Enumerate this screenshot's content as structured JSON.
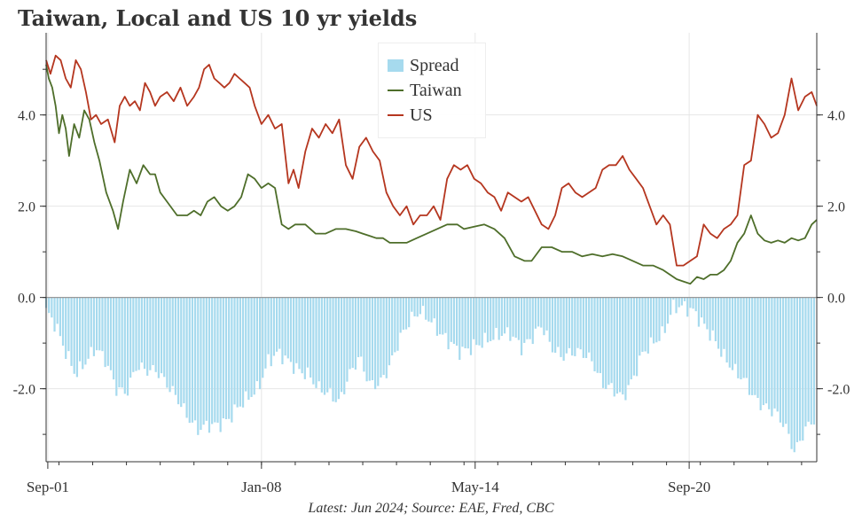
{
  "chart_data": {
    "type": "bar+line",
    "title": "Taiwan, Local and US 10 yr yields",
    "footer": "Latest: Jun 2024; Source: EAE, Fred, CBC",
    "x_tick_labels": [
      "Sep-01",
      "Jan-08",
      "May-14",
      "Sep-20"
    ],
    "x_tick_dates": [
      2001.67,
      2008.0,
      2014.33,
      2020.67
    ],
    "xlim": [
      2001.62,
      2024.45
    ],
    "ylim": [
      -3.6,
      5.8
    ],
    "y_ticks": [
      -2.0,
      0.0,
      2.0,
      4.0
    ],
    "y_tick_labels": [
      "-2.0",
      "0.0",
      "2.0",
      "4.0"
    ],
    "grid": true,
    "legend_position": "top-center",
    "legend": [
      "Spread",
      "Taiwan",
      "US"
    ],
    "colors": {
      "spread": "#a6daee",
      "taiwan": "#4e6e2a",
      "us": "#b5361f",
      "zero_line": "#999999"
    },
    "series": [
      {
        "name": "Taiwan",
        "kind": "line",
        "x": [
          2001.62,
          2001.7,
          2001.8,
          2001.9,
          2002.0,
          2002.1,
          2002.2,
          2002.3,
          2002.45,
          2002.6,
          2002.75,
          2002.9,
          2003.05,
          2003.2,
          2003.4,
          2003.6,
          2003.75,
          2003.9,
          2004.1,
          2004.3,
          2004.5,
          2004.7,
          2004.85,
          2005.0,
          2005.2,
          2005.5,
          2005.8,
          2006.0,
          2006.2,
          2006.4,
          2006.6,
          2006.8,
          2007.0,
          2007.2,
          2007.4,
          2007.6,
          2007.8,
          2008.0,
          2008.2,
          2008.4,
          2008.6,
          2008.8,
          2009.0,
          2009.3,
          2009.6,
          2009.9,
          2010.2,
          2010.5,
          2010.8,
          2011.0,
          2011.2,
          2011.4,
          2011.6,
          2011.8,
          2012.0,
          2012.3,
          2012.6,
          2012.9,
          2013.2,
          2013.5,
          2013.8,
          2014.0,
          2014.3,
          2014.6,
          2014.9,
          2015.2,
          2015.5,
          2015.8,
          2016.0,
          2016.3,
          2016.6,
          2016.9,
          2017.2,
          2017.5,
          2017.8,
          2018.1,
          2018.4,
          2018.7,
          2019.0,
          2019.3,
          2019.6,
          2019.9,
          2020.1,
          2020.3,
          2020.5,
          2020.7,
          2020.9,
          2021.1,
          2021.3,
          2021.5,
          2021.7,
          2021.9,
          2022.1,
          2022.3,
          2022.5,
          2022.7,
          2022.9,
          2023.1,
          2023.3,
          2023.5,
          2023.7,
          2023.9,
          2024.1,
          2024.3,
          2024.45
        ],
        "y": [
          5.1,
          4.8,
          4.6,
          4.2,
          3.6,
          4.0,
          3.7,
          3.1,
          3.8,
          3.5,
          4.1,
          3.9,
          3.4,
          3.0,
          2.3,
          1.9,
          1.5,
          2.1,
          2.8,
          2.5,
          2.9,
          2.7,
          2.7,
          2.3,
          2.1,
          1.8,
          1.8,
          1.9,
          1.8,
          2.1,
          2.2,
          2.0,
          1.9,
          2.0,
          2.2,
          2.7,
          2.6,
          2.4,
          2.5,
          2.4,
          1.6,
          1.5,
          1.6,
          1.6,
          1.4,
          1.4,
          1.5,
          1.5,
          1.45,
          1.4,
          1.35,
          1.3,
          1.3,
          1.2,
          1.2,
          1.2,
          1.3,
          1.4,
          1.5,
          1.6,
          1.6,
          1.5,
          1.55,
          1.6,
          1.5,
          1.3,
          0.9,
          0.8,
          0.8,
          1.1,
          1.1,
          1.0,
          1.0,
          0.9,
          0.95,
          0.9,
          0.95,
          0.9,
          0.8,
          0.7,
          0.7,
          0.6,
          0.5,
          0.4,
          0.35,
          0.3,
          0.45,
          0.4,
          0.5,
          0.5,
          0.6,
          0.8,
          1.2,
          1.4,
          1.8,
          1.4,
          1.25,
          1.2,
          1.25,
          1.2,
          1.3,
          1.25,
          1.3,
          1.6,
          1.7
        ]
      },
      {
        "name": "US",
        "kind": "line",
        "x": [
          2001.62,
          2001.75,
          2001.9,
          2002.05,
          2002.2,
          2002.35,
          2002.5,
          2002.65,
          2002.8,
          2002.95,
          2003.1,
          2003.25,
          2003.45,
          2003.65,
          2003.8,
          2003.95,
          2004.1,
          2004.25,
          2004.4,
          2004.55,
          2004.7,
          2004.85,
          2005.0,
          2005.2,
          2005.4,
          2005.6,
          2005.8,
          2006.0,
          2006.15,
          2006.3,
          2006.45,
          2006.6,
          2006.75,
          2006.9,
          2007.05,
          2007.2,
          2007.35,
          2007.5,
          2007.65,
          2007.8,
          2008.0,
          2008.2,
          2008.4,
          2008.6,
          2008.8,
          2008.95,
          2009.1,
          2009.3,
          2009.5,
          2009.7,
          2009.9,
          2010.1,
          2010.3,
          2010.5,
          2010.7,
          2010.9,
          2011.1,
          2011.3,
          2011.5,
          2011.7,
          2011.9,
          2012.1,
          2012.3,
          2012.5,
          2012.7,
          2012.9,
          2013.1,
          2013.3,
          2013.5,
          2013.7,
          2013.9,
          2014.1,
          2014.3,
          2014.5,
          2014.7,
          2014.9,
          2015.1,
          2015.3,
          2015.5,
          2015.7,
          2015.9,
          2016.1,
          2016.3,
          2016.5,
          2016.7,
          2016.9,
          2017.1,
          2017.3,
          2017.5,
          2017.7,
          2017.9,
          2018.1,
          2018.3,
          2018.5,
          2018.7,
          2018.9,
          2019.1,
          2019.3,
          2019.5,
          2019.7,
          2019.9,
          2020.1,
          2020.3,
          2020.5,
          2020.7,
          2020.9,
          2021.1,
          2021.3,
          2021.5,
          2021.7,
          2021.9,
          2022.1,
          2022.3,
          2022.5,
          2022.7,
          2022.9,
          2023.1,
          2023.3,
          2023.5,
          2023.7,
          2023.9,
          2024.1,
          2024.3,
          2024.45
        ],
        "y": [
          5.2,
          4.9,
          5.3,
          5.2,
          4.8,
          4.6,
          5.2,
          5.0,
          4.5,
          3.9,
          4.0,
          3.8,
          3.9,
          3.4,
          4.2,
          4.4,
          4.2,
          4.3,
          4.1,
          4.7,
          4.5,
          4.2,
          4.4,
          4.5,
          4.3,
          4.6,
          4.2,
          4.4,
          4.6,
          5.0,
          5.1,
          4.8,
          4.7,
          4.6,
          4.7,
          4.9,
          4.8,
          4.7,
          4.6,
          4.2,
          3.8,
          4.0,
          3.7,
          3.8,
          2.5,
          2.8,
          2.4,
          3.2,
          3.7,
          3.5,
          3.8,
          3.6,
          3.9,
          2.9,
          2.6,
          3.3,
          3.5,
          3.2,
          3.0,
          2.3,
          2.0,
          1.8,
          2.0,
          1.6,
          1.8,
          1.8,
          2.0,
          1.7,
          2.6,
          2.9,
          2.8,
          2.9,
          2.6,
          2.5,
          2.3,
          2.2,
          1.9,
          2.3,
          2.2,
          2.1,
          2.2,
          1.9,
          1.6,
          1.5,
          1.8,
          2.4,
          2.5,
          2.3,
          2.2,
          2.3,
          2.4,
          2.8,
          2.9,
          2.9,
          3.1,
          2.8,
          2.6,
          2.4,
          2.0,
          1.6,
          1.8,
          1.6,
          0.7,
          0.7,
          0.8,
          0.9,
          1.6,
          1.4,
          1.3,
          1.5,
          1.6,
          1.8,
          2.9,
          3.0,
          4.0,
          3.8,
          3.5,
          3.6,
          4.0,
          4.8,
          4.1,
          4.4,
          4.5,
          4.2
        ]
      },
      {
        "name": "Spread",
        "kind": "bar",
        "note": "Taiwan minus US, monthly bars",
        "x": [
          2001.62,
          2001.9,
          2002.2,
          2002.5,
          2002.8,
          2003.1,
          2003.4,
          2003.7,
          2004.0,
          2004.3,
          2004.6,
          2004.9,
          2005.2,
          2005.5,
          2005.8,
          2006.1,
          2006.4,
          2006.7,
          2007.0,
          2007.3,
          2007.6,
          2007.9,
          2008.2,
          2008.5,
          2008.8,
          2009.1,
          2009.4,
          2009.7,
          2010.0,
          2010.3,
          2010.6,
          2010.9,
          2011.2,
          2011.5,
          2011.8,
          2012.1,
          2012.4,
          2012.7,
          2013.0,
          2013.3,
          2013.6,
          2013.9,
          2014.2,
          2014.5,
          2014.8,
          2015.1,
          2015.4,
          2015.7,
          2016.0,
          2016.3,
          2016.6,
          2016.9,
          2017.2,
          2017.5,
          2017.8,
          2018.1,
          2018.4,
          2018.7,
          2019.0,
          2019.3,
          2019.6,
          2019.9,
          2020.2,
          2020.5,
          2020.8,
          2021.1,
          2021.4,
          2021.7,
          2022.0,
          2022.3,
          2022.6,
          2022.9,
          2023.2,
          2023.5,
          2023.8,
          2024.1,
          2024.45
        ],
        "y": [
          -0.3,
          -0.6,
          -1.2,
          -1.7,
          -1.4,
          -1.1,
          -1.4,
          -2.0,
          -2.1,
          -1.5,
          -1.6,
          -1.6,
          -1.9,
          -2.2,
          -2.6,
          -2.9,
          -2.8,
          -2.8,
          -2.7,
          -2.4,
          -2.2,
          -2.0,
          -1.4,
          -1.2,
          -1.4,
          -1.6,
          -1.7,
          -2.0,
          -2.1,
          -2.3,
          -1.7,
          -1.3,
          -1.9,
          -1.9,
          -1.5,
          -0.9,
          -0.5,
          -0.3,
          -0.5,
          -0.8,
          -1.0,
          -1.2,
          -1.1,
          -1.0,
          -0.9,
          -0.8,
          -0.8,
          -1.1,
          -0.9,
          -0.6,
          -1.1,
          -1.3,
          -1.2,
          -1.2,
          -1.4,
          -1.9,
          -2.0,
          -2.2,
          -1.8,
          -1.2,
          -1.0,
          -0.8,
          -0.2,
          -0.2,
          -0.3,
          -0.6,
          -0.9,
          -1.3,
          -1.6,
          -1.8,
          -2.2,
          -2.4,
          -2.5,
          -2.8,
          -3.4,
          -2.9,
          -2.6
        ]
      }
    ]
  }
}
